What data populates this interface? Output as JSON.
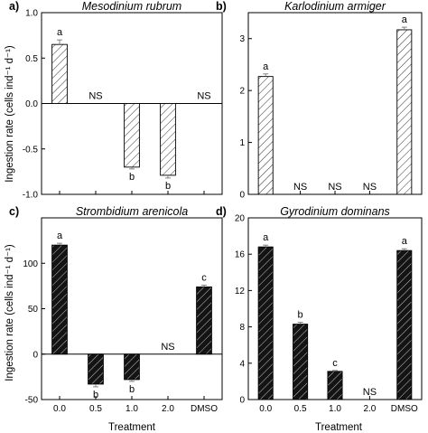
{
  "axes": {
    "ylabel": "Ingestion rate (cells ind⁻¹ d⁻¹)",
    "xlabel": "Treatment"
  },
  "chart_data": [
    {
      "type": "bar",
      "panel": "a)",
      "title": "Mesodinium rubrum",
      "categories": [
        "0.0",
        "0.5",
        "1.0",
        "2.0",
        "DMSO"
      ],
      "values": [
        0.65,
        0,
        -0.7,
        -0.79,
        0
      ],
      "errors": [
        0.05,
        0,
        0.02,
        0.03,
        0
      ],
      "annotations": [
        "a",
        "NS",
        "b",
        "b",
        "NS"
      ],
      "ylim": [
        -1.0,
        1.0
      ],
      "yticks": [
        "-1.0",
        "-0.5",
        "0.0",
        "0.5",
        "1.0"
      ],
      "fill": "hatched-white",
      "show_x_ticklabels": false
    },
    {
      "type": "bar",
      "panel": "b)",
      "title": "Karlodinium armiger",
      "categories": [
        "0.0",
        "0.5",
        "1.0",
        "2.0",
        "DMSO"
      ],
      "values": [
        2.27,
        0,
        0,
        0,
        3.17
      ],
      "errors": [
        0.05,
        0,
        0,
        0,
        0.05
      ],
      "annotations": [
        "a",
        "NS",
        "NS",
        "NS",
        "a"
      ],
      "ylim": [
        0,
        3.5
      ],
      "yticks": [
        "0",
        "1",
        "2",
        "3"
      ],
      "fill": "hatched-white",
      "show_x_ticklabels": false
    },
    {
      "type": "bar",
      "panel": "c)",
      "title": "Strombidium arenicola",
      "categories": [
        "0.0",
        "0.5",
        "1.0",
        "2.0",
        "DMSO"
      ],
      "values": [
        120,
        -33,
        -28,
        0,
        74
      ],
      "errors": [
        2,
        3,
        2,
        0,
        2
      ],
      "annotations": [
        "a",
        "b",
        "b",
        "NS",
        "c"
      ],
      "ylim": [
        -50,
        150
      ],
      "yticks": [
        "-50",
        "0",
        "50",
        "100"
      ],
      "fill": "hatched-black",
      "show_x_ticklabels": true
    },
    {
      "type": "bar",
      "panel": "d)",
      "title": "Gyrodinium dominans",
      "categories": [
        "0.0",
        "0.5",
        "1.0",
        "2.0",
        "DMSO"
      ],
      "values": [
        16.8,
        8.3,
        3.1,
        0,
        16.4
      ],
      "errors": [
        0.2,
        0.2,
        0.1,
        0,
        0.2
      ],
      "annotations": [
        "a",
        "b",
        "c",
        "NS",
        "a"
      ],
      "ylim": [
        0,
        20
      ],
      "yticks": [
        "0",
        "4",
        "8",
        "12",
        "16",
        "20"
      ],
      "fill": "hatched-black",
      "show_x_ticklabels": true
    }
  ]
}
